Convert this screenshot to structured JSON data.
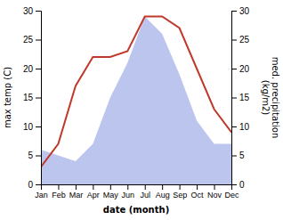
{
  "chart_data": {
    "type": "line",
    "categories": [
      "Jan",
      "Feb",
      "Mar",
      "Apr",
      "May",
      "Jun",
      "Jul",
      "Aug",
      "Sep",
      "Oct",
      "Nov",
      "Dec"
    ],
    "xlabel": "date (month)",
    "ylabel": "max temp (C)",
    "y2label": "med. precipitation\n(kg/m2)",
    "ylim": [
      0,
      30
    ],
    "yticks": [
      0,
      5,
      10,
      15,
      20,
      25,
      30
    ],
    "y2lim": [
      0,
      30
    ],
    "y2ticks": [
      0,
      5,
      10,
      15,
      20,
      25,
      30
    ],
    "series": [
      {
        "type": "area",
        "axis": "y2",
        "color": "#bcc5ee",
        "values": [
          6,
          5,
          4,
          7,
          15,
          21,
          29,
          26,
          19,
          11,
          7,
          7
        ]
      },
      {
        "type": "line",
        "color": "#c0392b",
        "values": [
          3,
          7,
          17,
          22,
          22,
          23,
          29,
          29,
          27,
          20,
          13,
          9
        ]
      }
    ]
  }
}
